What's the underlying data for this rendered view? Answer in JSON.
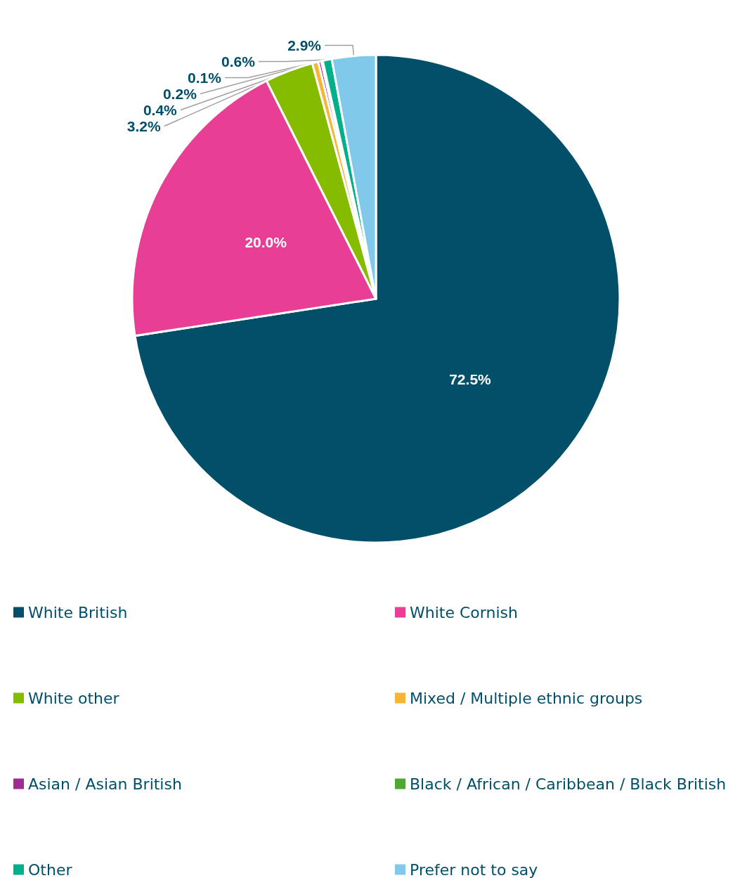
{
  "chart_data": {
    "type": "pie",
    "categories": [
      "White British",
      "White Cornish",
      "White other",
      "Mixed / Multiple ethnic groups",
      "Asian / Asian British",
      "Black / African / Caribbean / Black British",
      "Other",
      "Prefer not to say"
    ],
    "values": [
      72.5,
      20.0,
      3.2,
      0.4,
      0.2,
      0.1,
      0.6,
      2.9
    ],
    "colors": [
      "#024f6a",
      "#e83e96",
      "#86bc00",
      "#f7b538",
      "#a02c93",
      "#4ea832",
      "#00b08a",
      "#80c9ea"
    ],
    "value_labels": [
      "72.5%",
      "20.0%",
      "3.2%",
      "0.4%",
      "0.2%",
      "0.1%",
      "0.6%",
      "2.9%"
    ],
    "legend": "bottom"
  }
}
